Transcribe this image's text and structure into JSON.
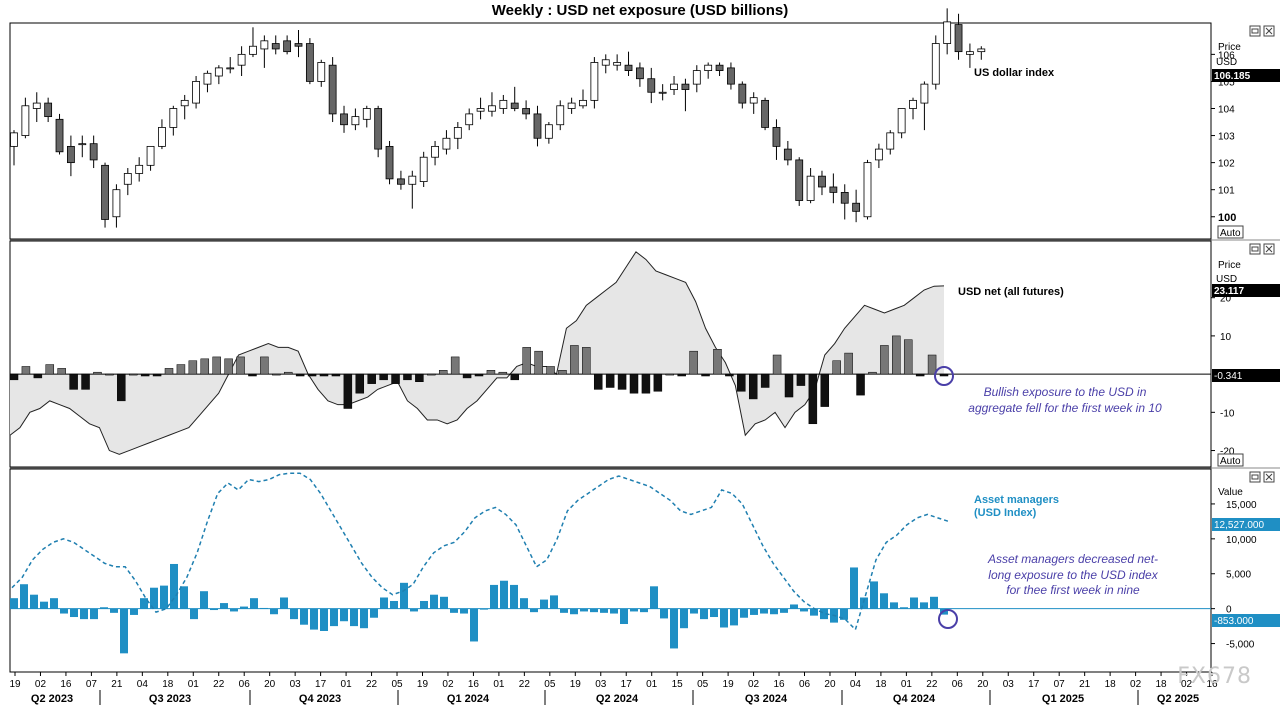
{
  "title": "Weekly : USD net exposure (USD billions)",
  "watermark": "FX678",
  "colors": {
    "up_candle": "#ffffff",
    "down_candle": "#666666",
    "axis_box": "#000000",
    "net_bar": "#777777",
    "net_bar_neg": "#111111",
    "area_fill": "#e6e6e6",
    "asset_bar": "#1f8fc4",
    "asset_line": "#1f7fb0",
    "annotation": "#4a3fa8"
  },
  "panels": {
    "dxy": {
      "label": "US dollar index",
      "price_header": "Price",
      "unit_header": "USD",
      "last_value": "106.185",
      "auto_label": "Auto",
      "y_ticks": [
        "106",
        "105",
        "104",
        "103",
        "102",
        "101",
        "100"
      ]
    },
    "net": {
      "label": "USD net (all futures)",
      "price_header": "Price",
      "unit_header": "USD",
      "last_value": "23.117",
      "zero_value": "-0.341",
      "auto_label": "Auto",
      "y_ticks": [
        "20",
        "10",
        "-10",
        "-20"
      ],
      "annotation": [
        "Bullish exposure to the USD in",
        "aggregate fell for the first week in 10"
      ]
    },
    "asset": {
      "label_line1": "Asset managers",
      "label_line2": "(USD Index)",
      "value_header": "Value",
      "last_value": "12,527.000",
      "zero_value": "-853.000",
      "y_ticks": [
        "15,000",
        "10,000",
        "5,000",
        "0",
        "-5,000"
      ],
      "annotation": [
        "Asset managers decreased net-",
        "long exposure to the USD index",
        "for thee first week in nine"
      ]
    }
  },
  "x_axis": {
    "day_ticks": [
      "19",
      "02",
      "16",
      "07",
      "21",
      "04",
      "18",
      "01",
      "22",
      "06",
      "20",
      "03",
      "17",
      "01",
      "22",
      "05",
      "19",
      "02",
      "16",
      "01",
      "22",
      "05",
      "19",
      "03",
      "17",
      "01",
      "15",
      "05",
      "19",
      "02",
      "16",
      "06",
      "20",
      "04",
      "18",
      "01",
      "22",
      "06",
      "20",
      "03",
      "17",
      "07",
      "21",
      "18",
      "02",
      "18",
      "02",
      "16"
    ],
    "quarters": [
      "Q2 2023",
      "Q3 2023",
      "Q4 2023",
      "Q1 2024",
      "Q2 2024",
      "Q3 2024",
      "Q4 2024",
      "Q1 2025",
      "Q2 2025"
    ]
  },
  "chart_data": [
    {
      "type": "candlestick",
      "title": "US dollar index",
      "ylim": [
        99.4,
        106.9
      ],
      "candles": [
        {
          "o": 102.6,
          "h": 103.2,
          "l": 101.9,
          "c": 103.1
        },
        {
          "o": 103.0,
          "h": 104.4,
          "l": 102.9,
          "c": 104.1
        },
        {
          "o": 104.0,
          "h": 104.6,
          "l": 103.5,
          "c": 104.2
        },
        {
          "o": 104.2,
          "h": 104.4,
          "l": 103.5,
          "c": 103.7
        },
        {
          "o": 103.6,
          "h": 103.8,
          "l": 102.3,
          "c": 102.4
        },
        {
          "o": 102.6,
          "h": 103.0,
          "l": 101.5,
          "c": 102.0
        },
        {
          "o": 102.7,
          "h": 103.0,
          "l": 102.2,
          "c": 102.7
        },
        {
          "o": 102.7,
          "h": 103.0,
          "l": 101.8,
          "c": 102.1
        },
        {
          "o": 101.9,
          "h": 102.0,
          "l": 99.6,
          "c": 99.9
        },
        {
          "o": 100.0,
          "h": 101.2,
          "l": 99.6,
          "c": 101.0
        },
        {
          "o": 101.2,
          "h": 101.8,
          "l": 100.8,
          "c": 101.6
        },
        {
          "o": 101.6,
          "h": 102.2,
          "l": 101.3,
          "c": 101.9
        },
        {
          "o": 101.9,
          "h": 102.6,
          "l": 101.7,
          "c": 102.6
        },
        {
          "o": 102.6,
          "h": 103.6,
          "l": 102.5,
          "c": 103.3
        },
        {
          "o": 103.3,
          "h": 104.1,
          "l": 103.0,
          "c": 104.0
        },
        {
          "o": 104.1,
          "h": 104.5,
          "l": 103.6,
          "c": 104.3
        },
        {
          "o": 104.2,
          "h": 105.2,
          "l": 104.0,
          "c": 105.0
        },
        {
          "o": 104.9,
          "h": 105.4,
          "l": 104.6,
          "c": 105.3
        },
        {
          "o": 105.2,
          "h": 105.6,
          "l": 104.9,
          "c": 105.5
        },
        {
          "o": 105.5,
          "h": 105.9,
          "l": 105.3,
          "c": 105.5
        },
        {
          "o": 105.6,
          "h": 106.3,
          "l": 105.2,
          "c": 106.0
        },
        {
          "o": 106.0,
          "h": 107.0,
          "l": 105.9,
          "c": 106.3
        },
        {
          "o": 106.2,
          "h": 106.7,
          "l": 105.5,
          "c": 106.5
        },
        {
          "o": 106.4,
          "h": 106.7,
          "l": 106.0,
          "c": 106.2
        },
        {
          "o": 106.5,
          "h": 106.7,
          "l": 106.0,
          "c": 106.1
        },
        {
          "o": 106.4,
          "h": 106.9,
          "l": 105.9,
          "c": 106.3
        },
        {
          "o": 106.4,
          "h": 106.6,
          "l": 104.9,
          "c": 105.0
        },
        {
          "o": 105.0,
          "h": 105.8,
          "l": 104.8,
          "c": 105.7
        },
        {
          "o": 105.6,
          "h": 105.9,
          "l": 103.5,
          "c": 103.8
        },
        {
          "o": 103.8,
          "h": 104.1,
          "l": 103.1,
          "c": 103.4
        },
        {
          "o": 103.4,
          "h": 104.0,
          "l": 103.2,
          "c": 103.7
        },
        {
          "o": 103.6,
          "h": 104.1,
          "l": 103.3,
          "c": 104.0
        },
        {
          "o": 104.0,
          "h": 104.1,
          "l": 102.2,
          "c": 102.5
        },
        {
          "o": 102.6,
          "h": 102.8,
          "l": 101.2,
          "c": 101.4
        },
        {
          "o": 101.4,
          "h": 101.7,
          "l": 101.0,
          "c": 101.2
        },
        {
          "o": 101.2,
          "h": 101.7,
          "l": 100.3,
          "c": 101.5
        },
        {
          "o": 101.3,
          "h": 102.4,
          "l": 101.1,
          "c": 102.2
        },
        {
          "o": 102.2,
          "h": 102.8,
          "l": 101.9,
          "c": 102.6
        },
        {
          "o": 102.5,
          "h": 103.2,
          "l": 102.3,
          "c": 102.9
        },
        {
          "o": 102.9,
          "h": 103.5,
          "l": 102.5,
          "c": 103.3
        },
        {
          "o": 103.4,
          "h": 104.0,
          "l": 103.2,
          "c": 103.8
        },
        {
          "o": 103.9,
          "h": 104.4,
          "l": 103.6,
          "c": 104.0
        },
        {
          "o": 103.9,
          "h": 104.6,
          "l": 103.7,
          "c": 104.1
        },
        {
          "o": 104.0,
          "h": 104.5,
          "l": 103.8,
          "c": 104.3
        },
        {
          "o": 104.2,
          "h": 104.8,
          "l": 103.9,
          "c": 104.0
        },
        {
          "o": 104.0,
          "h": 104.3,
          "l": 103.6,
          "c": 103.8
        },
        {
          "o": 103.8,
          "h": 104.1,
          "l": 102.6,
          "c": 102.9
        },
        {
          "o": 102.9,
          "h": 103.5,
          "l": 102.7,
          "c": 103.4
        },
        {
          "o": 103.4,
          "h": 104.3,
          "l": 103.2,
          "c": 104.1
        },
        {
          "o": 104.0,
          "h": 104.4,
          "l": 103.8,
          "c": 104.2
        },
        {
          "o": 104.1,
          "h": 104.7,
          "l": 104.0,
          "c": 104.3
        },
        {
          "o": 104.3,
          "h": 105.9,
          "l": 104.0,
          "c": 105.7
        },
        {
          "o": 105.6,
          "h": 106.0,
          "l": 105.3,
          "c": 105.8
        },
        {
          "o": 105.6,
          "h": 106.0,
          "l": 105.4,
          "c": 105.7
        },
        {
          "o": 105.6,
          "h": 106.1,
          "l": 105.2,
          "c": 105.4
        },
        {
          "o": 105.5,
          "h": 105.7,
          "l": 104.8,
          "c": 105.1
        },
        {
          "o": 105.1,
          "h": 105.5,
          "l": 104.2,
          "c": 104.6
        },
        {
          "o": 104.6,
          "h": 104.9,
          "l": 104.3,
          "c": 104.6
        },
        {
          "o": 104.7,
          "h": 105.2,
          "l": 104.5,
          "c": 104.9
        },
        {
          "o": 104.9,
          "h": 105.1,
          "l": 103.9,
          "c": 104.7
        },
        {
          "o": 104.9,
          "h": 105.6,
          "l": 104.6,
          "c": 105.4
        },
        {
          "o": 105.4,
          "h": 105.7,
          "l": 105.1,
          "c": 105.6
        },
        {
          "o": 105.6,
          "h": 105.7,
          "l": 105.2,
          "c": 105.4
        },
        {
          "o": 105.5,
          "h": 105.7,
          "l": 104.7,
          "c": 104.9
        },
        {
          "o": 104.9,
          "h": 105.0,
          "l": 104.0,
          "c": 104.2
        },
        {
          "o": 104.2,
          "h": 104.6,
          "l": 103.8,
          "c": 104.4
        },
        {
          "o": 104.3,
          "h": 104.4,
          "l": 103.2,
          "c": 103.3
        },
        {
          "o": 103.3,
          "h": 103.6,
          "l": 102.1,
          "c": 102.6
        },
        {
          "o": 102.5,
          "h": 102.8,
          "l": 101.9,
          "c": 102.1
        },
        {
          "o": 102.1,
          "h": 102.2,
          "l": 100.4,
          "c": 100.6
        },
        {
          "o": 100.6,
          "h": 101.8,
          "l": 100.5,
          "c": 101.5
        },
        {
          "o": 101.5,
          "h": 101.7,
          "l": 100.8,
          "c": 101.1
        },
        {
          "o": 101.1,
          "h": 101.6,
          "l": 100.5,
          "c": 100.9
        },
        {
          "o": 100.9,
          "h": 101.2,
          "l": 99.9,
          "c": 100.5
        },
        {
          "o": 100.5,
          "h": 101.0,
          "l": 99.8,
          "c": 100.2
        },
        {
          "o": 100.0,
          "h": 102.1,
          "l": 99.9,
          "c": 102.0
        },
        {
          "o": 102.1,
          "h": 102.7,
          "l": 101.8,
          "c": 102.5
        },
        {
          "o": 102.5,
          "h": 103.2,
          "l": 102.3,
          "c": 103.1
        },
        {
          "o": 103.1,
          "h": 104.0,
          "l": 102.9,
          "c": 104.0
        },
        {
          "o": 104.0,
          "h": 104.4,
          "l": 103.6,
          "c": 104.3
        },
        {
          "o": 104.2,
          "h": 105.0,
          "l": 103.2,
          "c": 104.9
        },
        {
          "o": 104.9,
          "h": 106.7,
          "l": 104.7,
          "c": 106.4
        },
        {
          "o": 106.4,
          "h": 107.7,
          "l": 106.0,
          "c": 107.2
        },
        {
          "o": 107.1,
          "h": 107.5,
          "l": 105.8,
          "c": 106.1
        },
        {
          "o": 106.0,
          "h": 106.4,
          "l": 105.5,
          "c": 106.1
        },
        {
          "o": 106.1,
          "h": 106.3,
          "l": 105.8,
          "c": 106.2
        }
      ]
    },
    {
      "type": "bar+area",
      "title": "USD net (all futures)",
      "ylim": [
        -23,
        33
      ],
      "bars": [
        -1.5,
        2,
        -1,
        2.5,
        1.5,
        -4,
        -4,
        0.5,
        0,
        -7,
        0,
        -0.5,
        -0.5,
        1.5,
        2.5,
        3.5,
        4,
        4.5,
        4,
        4.5,
        -0.5,
        4.5,
        0,
        0.5,
        -0.5,
        -0.5,
        -0.5,
        -0.5,
        -9,
        -5,
        -2.5,
        -1.5,
        -2.5,
        -1.5,
        -2,
        0,
        1,
        4.5,
        -1,
        -0.5,
        1,
        0.5,
        -1.5,
        7,
        6,
        2,
        1,
        7.5,
        7,
        -4,
        -3.5,
        -4,
        -5,
        -5,
        -4.5,
        0,
        -0.5,
        6,
        -0.5,
        6.5,
        -0.5,
        -4.5,
        -6.5,
        -3.5,
        5,
        -6,
        -3,
        -13,
        -8.5,
        3.5,
        5.5,
        -5.5,
        0.5,
        7.5,
        10,
        9,
        -0.5,
        5,
        -0.5
      ],
      "line": [
        -16,
        -14,
        -10,
        -9,
        -7,
        -8,
        -9,
        -11,
        -13,
        -14,
        -20,
        -21,
        -20,
        -19,
        -18,
        -17,
        -16,
        -15,
        -14,
        -11,
        -8,
        -5,
        0,
        5,
        6,
        7,
        8,
        7,
        7,
        6,
        0,
        -4,
        -7,
        -8,
        -8,
        -7,
        -6,
        -4,
        -3,
        -2,
        -7,
        -9,
        -12,
        -12,
        -13,
        -12,
        -9,
        -7,
        -4,
        -1,
        -1,
        2,
        3,
        2,
        2,
        0,
        12,
        14,
        18,
        20,
        22,
        24,
        28,
        32,
        30,
        27,
        26,
        25,
        24,
        19,
        12,
        7,
        3,
        -3,
        -16,
        -13,
        -12,
        -10,
        -14,
        -10,
        -8,
        -4,
        5,
        8,
        12,
        15,
        18,
        17,
        16,
        17,
        18,
        20,
        22,
        23,
        23.1
      ]
    },
    {
      "type": "bar+line",
      "title": "Asset managers (USD Index)",
      "ylim": [
        -8500,
        19000
      ],
      "bars": [
        1500,
        3500,
        2000,
        1000,
        1500,
        -700,
        -1200,
        -1500,
        -1500,
        200,
        -600,
        -6400,
        -900,
        1500,
        3000,
        3300,
        6400,
        3200,
        -1500,
        2500,
        -200,
        800,
        -400,
        300,
        1500,
        100,
        -800,
        1600,
        -1500,
        -2300,
        -3000,
        -3200,
        -2500,
        -1800,
        -2500,
        -2800,
        -1300,
        1600,
        1100,
        3700,
        -400,
        1100,
        2000,
        1700,
        -600,
        -700,
        -4700,
        -100,
        3400,
        4000,
        3400,
        1500,
        -500,
        1300,
        1900,
        -600,
        -800,
        -400,
        -500,
        -600,
        -700,
        -2200,
        -400,
        -500,
        3200,
        -1400,
        -5700,
        -2800,
        -700,
        -1500,
        -1200,
        -2700,
        -2400,
        -1300,
        -900,
        -700,
        -800,
        -600,
        600,
        -400,
        -1000,
        -1500,
        -2000,
        -1600,
        5900,
        1600,
        3900,
        2200,
        900,
        200,
        1600,
        900,
        1700,
        -853
      ],
      "line": [
        3000,
        4500,
        7000,
        8500,
        9500,
        10000,
        9500,
        8500,
        7500,
        6500,
        6000,
        6000,
        4000,
        1500,
        -500,
        0,
        2000,
        4500,
        8000,
        12500,
        16500,
        18000,
        17000,
        18500,
        18200,
        18500,
        19200,
        19400,
        19400,
        18500,
        16500,
        14000,
        11500,
        9000,
        6500,
        4500,
        3000,
        2000,
        2500,
        3500,
        6000,
        8000,
        9000,
        9500,
        11000,
        13000,
        14000,
        14500,
        13500,
        12000,
        9000,
        6000,
        7000,
        10000,
        14000,
        15500,
        16500,
        17500,
        18500,
        19000,
        18500,
        18000,
        17500,
        16500,
        15500,
        14000,
        13500,
        14000,
        14500,
        17000,
        16500,
        15000,
        12000,
        9000,
        6500,
        4500,
        2500,
        1000,
        0,
        -700,
        -1000,
        -1500,
        -3000,
        2000,
        7000,
        9500,
        10500,
        12000,
        13000,
        13500,
        13000,
        12527
      ]
    }
  ]
}
